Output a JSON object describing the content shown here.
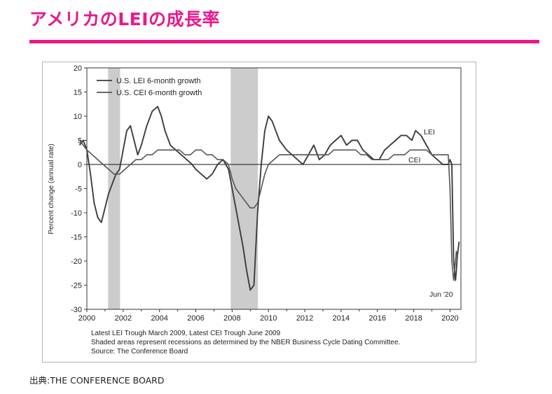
{
  "title": "アメリカのLEIの成長率",
  "colors": {
    "accent": "#e8198b",
    "lei": "#3c3c3c",
    "cei": "#555555",
    "recession": "#cccccc"
  },
  "chart_data": {
    "type": "line",
    "ylabel": "Percent change (annual rate)",
    "xlabel": "",
    "xlim": [
      2000,
      2020.6
    ],
    "ylim": [
      -30,
      20
    ],
    "x_ticks": [
      2000,
      2002,
      2004,
      2006,
      2008,
      2010,
      2012,
      2014,
      2016,
      2018,
      2020
    ],
    "x_tick_labels": [
      "2000",
      "2002",
      "2004",
      "2006",
      "2008",
      "2010",
      "2012",
      "2014",
      "2016",
      "2018",
      "2020"
    ],
    "y_ticks": [
      20,
      15,
      10,
      5,
      0,
      -5,
      -10,
      -15,
      -20,
      -25,
      -30
    ],
    "y_tick_labels": [
      "20",
      "15",
      "10",
      "5",
      "0",
      "-5",
      "-10",
      "-15",
      "-20",
      "-25",
      "-30"
    ],
    "recessions": [
      [
        2001.17,
        2001.83
      ],
      [
        2007.92,
        2009.42
      ]
    ],
    "legend": [
      "U.S. LEI 6-month growth",
      "U.S. CEI 6-month growth"
    ],
    "annotations": {
      "lei": "LEI",
      "cei": "CEI",
      "trough": "Jun '20"
    },
    "series": [
      {
        "name": "U.S. LEI 6-month growth",
        "x": [
          1999.6,
          1999.8,
          2000.0,
          2000.2,
          2000.4,
          2000.6,
          2000.8,
          2001.0,
          2001.2,
          2001.4,
          2001.6,
          2001.8,
          2002.0,
          2002.2,
          2002.4,
          2002.6,
          2002.8,
          2003.0,
          2003.3,
          2003.6,
          2003.9,
          2004.1,
          2004.3,
          2004.6,
          2004.9,
          2005.2,
          2005.5,
          2005.8,
          2006.0,
          2006.3,
          2006.6,
          2006.9,
          2007.2,
          2007.5,
          2007.8,
          2008.0,
          2008.2,
          2008.4,
          2008.6,
          2008.8,
          2009.0,
          2009.2,
          2009.4,
          2009.6,
          2009.8,
          2010.0,
          2010.2,
          2010.4,
          2010.6,
          2010.8,
          2011.0,
          2011.3,
          2011.6,
          2011.9,
          2012.2,
          2012.5,
          2012.8,
          2013.1,
          2013.4,
          2013.7,
          2014.0,
          2014.3,
          2014.6,
          2014.9,
          2015.2,
          2015.5,
          2015.8,
          2016.1,
          2016.4,
          2016.7,
          2017.0,
          2017.3,
          2017.6,
          2017.9,
          2018.1,
          2018.4,
          2018.7,
          2019.0,
          2019.3,
          2019.6,
          2019.9,
          2020.0,
          2020.1,
          2020.2,
          2020.3,
          2020.35,
          2020.4,
          2020.5
        ],
        "values": [
          4,
          5,
          3,
          -2,
          -8,
          -11,
          -12,
          -9,
          -6,
          -4,
          -2,
          -1,
          3,
          7,
          8,
          5,
          2,
          4,
          8,
          11,
          12,
          10,
          7,
          4,
          3,
          2,
          1,
          0,
          -1,
          -2,
          -3,
          -2,
          0,
          1,
          -1,
          -5,
          -9,
          -13,
          -17,
          -22,
          -26,
          -25,
          -10,
          0,
          7,
          10,
          9,
          7,
          5,
          4,
          3,
          2,
          1,
          0,
          2,
          4,
          1,
          2,
          4,
          5,
          6,
          4,
          5,
          5,
          3,
          2,
          1,
          1,
          3,
          4,
          5,
          6,
          6,
          5,
          7,
          6,
          4,
          2,
          1,
          0,
          0,
          1,
          0,
          -20,
          -24,
          -22,
          -19,
          -16
        ]
      },
      {
        "name": "U.S. CEI 6-month growth",
        "x": [
          1999.6,
          1999.8,
          2000.0,
          2000.3,
          2000.6,
          2000.9,
          2001.2,
          2001.5,
          2001.8,
          2002.1,
          2002.4,
          2002.7,
          2003.0,
          2003.3,
          2003.6,
          2003.9,
          2004.2,
          2004.5,
          2004.8,
          2005.1,
          2005.4,
          2005.7,
          2006.0,
          2006.3,
          2006.6,
          2006.9,
          2007.2,
          2007.5,
          2007.8,
          2008.0,
          2008.2,
          2008.4,
          2008.6,
          2008.8,
          2009.0,
          2009.2,
          2009.4,
          2009.6,
          2009.8,
          2010.0,
          2010.3,
          2010.6,
          2010.9,
          2011.2,
          2011.5,
          2011.8,
          2012.1,
          2012.4,
          2012.7,
          2013.0,
          2013.3,
          2013.6,
          2013.9,
          2014.2,
          2014.5,
          2014.8,
          2015.1,
          2015.4,
          2015.7,
          2016.0,
          2016.3,
          2016.6,
          2016.9,
          2017.2,
          2017.5,
          2017.8,
          2018.1,
          2018.4,
          2018.7,
          2019.0,
          2019.3,
          2019.6,
          2019.9,
          2020.0,
          2020.1,
          2020.2,
          2020.3,
          2020.35,
          2020.4
        ],
        "values": [
          5,
          4,
          3,
          2,
          1,
          0,
          -1,
          -2,
          -2,
          -1,
          0,
          1,
          1,
          2,
          2,
          3,
          3,
          3,
          3,
          3,
          2,
          2,
          3,
          3,
          2,
          2,
          1,
          1,
          0,
          -3,
          -5,
          -6,
          -7,
          -8,
          -9,
          -9,
          -8,
          -5,
          -2,
          0,
          1,
          2,
          2,
          2,
          2,
          2,
          2,
          2,
          2,
          2,
          2,
          3,
          3,
          3,
          3,
          3,
          2,
          2,
          1,
          1,
          1,
          1,
          2,
          2,
          2,
          3,
          3,
          3,
          3,
          2,
          2,
          2,
          2,
          -5,
          -20,
          -24,
          -20,
          -18,
          -19
        ]
      }
    ]
  },
  "notes": [
    "Latest LEI Trough March 2009, Latest CEI Trough June 2009",
    "Shaded areas represent recessions as determined by the NBER Business Cycle Dating Committee.",
    "Source: The Conference Board"
  ],
  "credit": "出典:THE CONFERENCE BOARD"
}
